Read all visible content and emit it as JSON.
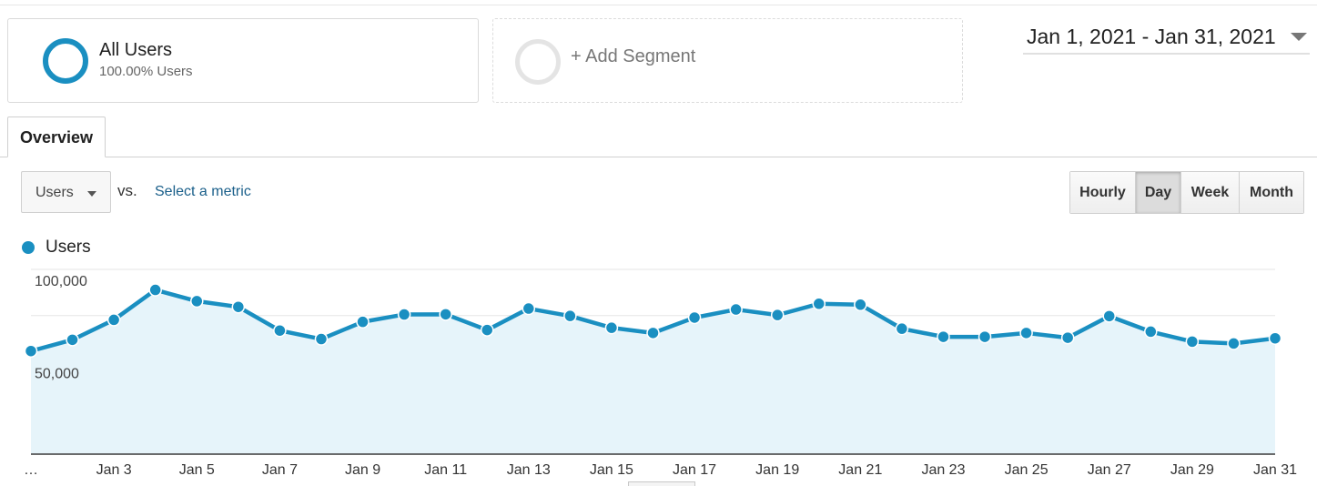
{
  "segments": {
    "active": {
      "name": "All Users",
      "subtitle": "100.00% Users"
    },
    "add_label": "+ Add Segment"
  },
  "date_range": {
    "label": "Jan 1, 2021 - Jan 31, 2021"
  },
  "tabs": [
    {
      "label": "Overview",
      "active": true
    }
  ],
  "metric_controls": {
    "selected_metric": "Users",
    "vs_label": "vs.",
    "select_metric_link": "Select a metric"
  },
  "granularity": {
    "buttons": [
      {
        "label": "Hourly",
        "active": false
      },
      {
        "label": "Day",
        "active": true
      },
      {
        "label": "Week",
        "active": false
      },
      {
        "label": "Month",
        "active": false
      }
    ]
  },
  "colors": {
    "series": "#1a8fc1",
    "area_fill": "#e6f4fa",
    "link": "#1a5f8a",
    "gridline": "#e5e5e5"
  },
  "icons": {
    "segment_active": "circle-ring-icon",
    "segment_add": "circle-ring-icon",
    "date_dropdown": "caret-down-icon",
    "metric_dropdown": "caret-down-icon",
    "legend_marker": "circle-dot-icon"
  },
  "chart_data": {
    "type": "area",
    "series": [
      {
        "name": "Users",
        "x": [
          "Jan 1",
          "Jan 2",
          "Jan 3",
          "Jan 4",
          "Jan 5",
          "Jan 6",
          "Jan 7",
          "Jan 8",
          "Jan 9",
          "Jan 10",
          "Jan 11",
          "Jan 12",
          "Jan 13",
          "Jan 14",
          "Jan 15",
          "Jan 16",
          "Jan 17",
          "Jan 18",
          "Jan 19",
          "Jan 20",
          "Jan 21",
          "Jan 22",
          "Jan 23",
          "Jan 24",
          "Jan 25",
          "Jan 26",
          "Jan 27",
          "Jan 28",
          "Jan 29",
          "Jan 30",
          "Jan 31"
        ],
        "values": [
          55800,
          61900,
          72700,
          88900,
          82800,
          79700,
          66900,
          62300,
          71600,
          75600,
          75700,
          67200,
          78800,
          74800,
          68400,
          65600,
          73900,
          78300,
          75300,
          81400,
          80900,
          67900,
          63500,
          63500,
          65600,
          63000,
          74700,
          66300,
          60900,
          59900,
          62700
        ]
      }
    ],
    "x_tick_labels": [
      "…",
      "Jan 3",
      "Jan 5",
      "Jan 7",
      "Jan 9",
      "Jan 11",
      "Jan 13",
      "Jan 15",
      "Jan 17",
      "Jan 19",
      "Jan 21",
      "Jan 23",
      "Jan 25",
      "Jan 27",
      "Jan 29",
      "Jan 31"
    ],
    "y_tick_labels": [
      "100,000",
      "50,000"
    ],
    "y_ticks": [
      100000,
      50000
    ],
    "ylim": [
      0,
      100000
    ],
    "grid": true,
    "legend_position": "top-left"
  }
}
